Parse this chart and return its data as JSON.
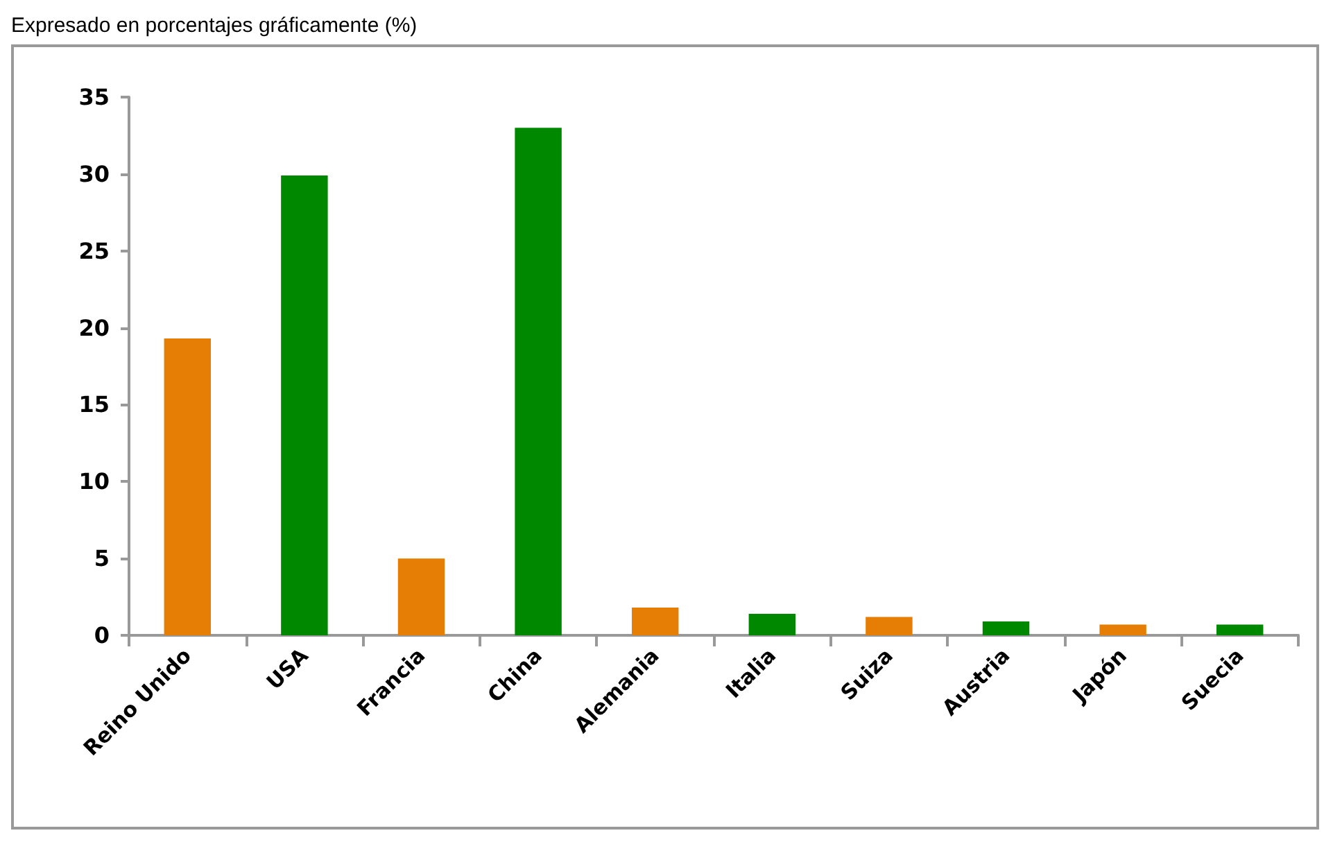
{
  "chart_data": {
    "type": "bar",
    "title": "Expresado en porcentajes gráficamente (%)",
    "categories": [
      "Reino Unido",
      "USA",
      "Francia",
      "China",
      "Alemania",
      "Italia",
      "Suiza",
      "Austria",
      "Japón",
      "Suecia"
    ],
    "values": [
      19.3,
      29.9,
      5.0,
      33.0,
      1.8,
      1.4,
      1.2,
      0.9,
      0.7,
      0.7
    ],
    "colors": [
      "#e67e05",
      "#008800",
      "#e67e05",
      "#008800",
      "#e67e05",
      "#008800",
      "#e67e05",
      "#008800",
      "#e67e05",
      "#008800"
    ],
    "ylim": [
      0,
      35
    ],
    "yticks": [
      0,
      5,
      10,
      15,
      20,
      25,
      30,
      35
    ],
    "grid": false
  }
}
